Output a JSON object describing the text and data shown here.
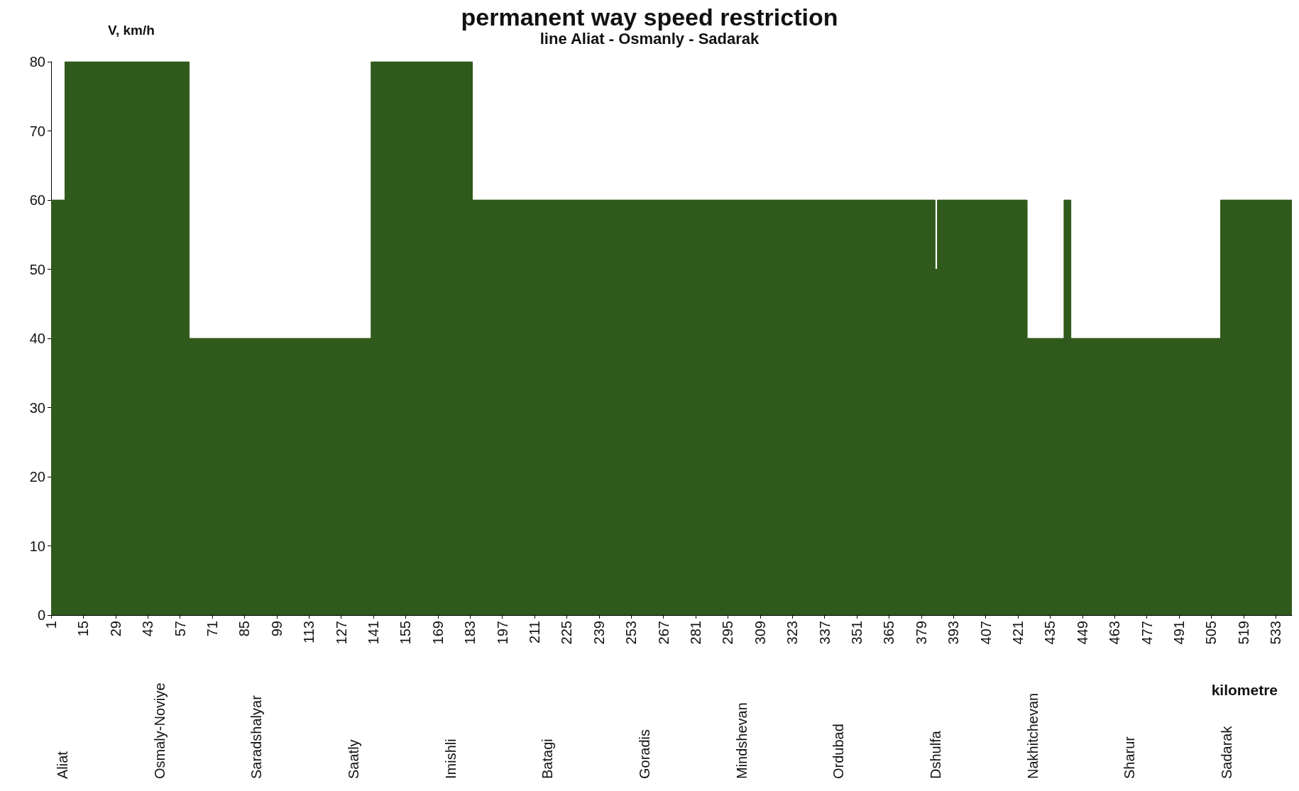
{
  "chart_data": {
    "type": "area",
    "title": "permanent way speed restriction",
    "subtitle": "line Aliat - Osmanly - Sadarak",
    "xlabel": "kilometre",
    "ylabel": "V, km/h",
    "x": [
      1,
      7,
      7,
      61,
      61,
      140,
      140,
      184,
      184,
      385,
      385,
      386,
      386,
      425,
      425,
      441,
      441,
      444,
      444,
      509,
      509,
      540
    ],
    "series": [
      {
        "color": "#2f5a1c",
        "values": [
          60,
          60,
          80,
          80,
          40,
          40,
          80,
          80,
          60,
          60,
          50,
          50,
          60,
          60,
          40,
          40,
          60,
          60,
          40,
          40,
          60,
          60
        ]
      }
    ],
    "xlim": [
      1,
      540
    ],
    "xticks": [
      1,
      15,
      29,
      43,
      57,
      71,
      85,
      99,
      113,
      127,
      141,
      155,
      169,
      183,
      197,
      211,
      225,
      239,
      253,
      267,
      281,
      295,
      309,
      323,
      337,
      351,
      365,
      379,
      393,
      407,
      421,
      435,
      449,
      463,
      477,
      491,
      505,
      519,
      533
    ],
    "annotations": [
      "Aliat",
      "Osmaly-Noviye",
      "Saradshalyar",
      "Saatly",
      "Imishli",
      "Batagi",
      "Goradis",
      "Mindshevan",
      "Ordubad",
      "Dshulfa",
      "Nakhitchevan",
      "Sharur",
      "Sadarak"
    ],
    "ylim": [
      0,
      80
    ],
    "yticks": [
      0,
      10,
      20,
      30,
      40,
      50,
      60,
      70,
      80
    ],
    "grid": false
  }
}
